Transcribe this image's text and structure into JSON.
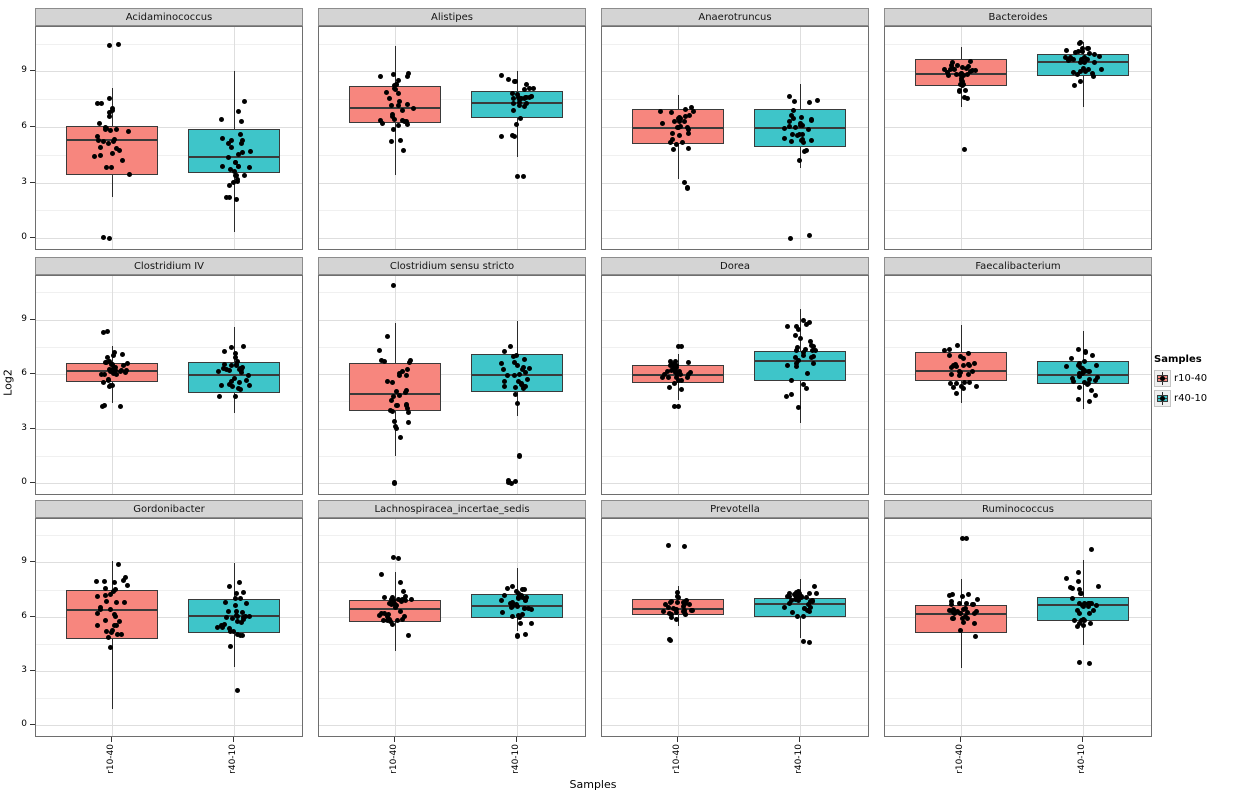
{
  "chart_data": {
    "type": "boxplot",
    "description": "Faceted box-and-jitter plot, 3 rows x 4 columns, one facet per bacterial genus, comparing two sample groups",
    "ylabel": "Log2",
    "xlabel": "Samples",
    "legend_title": "Samples",
    "x_categories": [
      "r10-40",
      "r40-10"
    ],
    "yticks": [
      0,
      3,
      6,
      9
    ],
    "ylim": [
      -0.7,
      11.4
    ],
    "grid": "major and minor horizontal gridlines, vertical gridline at each category",
    "legend_position": "right",
    "groups": [
      {
        "name": "r10-40",
        "fill": "#F7867E"
      },
      {
        "name": "r40-10",
        "fill": "#3EC5C9"
      }
    ],
    "style": {
      "panel_bg": "#FFFFFF",
      "panel_border": "#6E6E6E",
      "strip_bg": "#D4D4D4",
      "strip_border": "#8C8C8C",
      "grid_major": "#DEDEDE",
      "grid_minor": "#F0F0F0",
      "box_border": "#3A3A3A",
      "point_color": "#000000"
    },
    "panels": [
      {
        "title": "Acidaminococcus",
        "boxes": [
          {
            "group": "r10-40",
            "whisker_low": 2.2,
            "q1": 3.4,
            "median": 5.3,
            "q3": 6.05,
            "whisker_high": 8.1,
            "outliers": [
              10.4,
              10.45,
              0,
              0.05
            ],
            "n_points": 30
          },
          {
            "group": "r40-10",
            "whisker_low": 0.3,
            "q1": 3.5,
            "median": 4.4,
            "q3": 5.9,
            "whisker_high": 9.0,
            "outliers": [],
            "n_points": 33
          }
        ]
      },
      {
        "title": "Alistipes",
        "boxes": [
          {
            "group": "r10-40",
            "whisker_low": 3.4,
            "q1": 6.2,
            "median": 7.05,
            "q3": 8.2,
            "whisker_high": 10.4,
            "outliers": [],
            "n_points": 33
          },
          {
            "group": "r40-10",
            "whisker_low": 4.4,
            "q1": 6.5,
            "median": 7.3,
            "q3": 7.95,
            "whisker_high": 9.05,
            "outliers": [
              3.3,
              3.35
            ],
            "n_points": 31
          }
        ]
      },
      {
        "title": "Anaerotruncus",
        "boxes": [
          {
            "group": "r10-40",
            "whisker_low": 3.2,
            "q1": 5.1,
            "median": 5.95,
            "q3": 6.95,
            "whisker_high": 7.7,
            "outliers": [
              2.7,
              2.75,
              3.0
            ],
            "n_points": 30
          },
          {
            "group": "r40-10",
            "whisker_low": 3.8,
            "q1": 4.9,
            "median": 5.95,
            "q3": 6.95,
            "whisker_high": 8.3,
            "outliers": [
              0,
              0.15
            ],
            "n_points": 31
          }
        ]
      },
      {
        "title": "Bacteroides",
        "boxes": [
          {
            "group": "r10-40",
            "whisker_low": 7.1,
            "q1": 8.2,
            "median": 8.85,
            "q3": 9.65,
            "whisker_high": 10.3,
            "outliers": [
              4.8
            ],
            "n_points": 34
          },
          {
            "group": "r40-10",
            "whisker_low": 7.1,
            "q1": 8.75,
            "median": 9.5,
            "q3": 9.95,
            "whisker_high": 10.6,
            "outliers": [],
            "n_points": 34
          }
        ]
      },
      {
        "title": "Clostridium IV",
        "boxes": [
          {
            "group": "r10-40",
            "whisker_low": 4.4,
            "q1": 5.55,
            "median": 6.2,
            "q3": 6.6,
            "whisker_high": 7.55,
            "outliers": [
              4.2,
              4.25,
              4.3,
              8.3,
              8.35
            ],
            "n_points": 30
          },
          {
            "group": "r40-10",
            "whisker_low": 3.85,
            "q1": 4.95,
            "median": 5.95,
            "q3": 6.65,
            "whisker_high": 8.6,
            "outliers": [],
            "n_points": 32
          }
        ]
      },
      {
        "title": "Clostridium sensu stricto",
        "boxes": [
          {
            "group": "r10-40",
            "whisker_low": 1.5,
            "q1": 3.95,
            "median": 4.9,
            "q3": 6.6,
            "whisker_high": 8.8,
            "outliers": [
              10.9,
              0,
              0.05
            ],
            "n_points": 32
          },
          {
            "group": "r40-10",
            "whisker_low": 3.7,
            "q1": 5.0,
            "median": 5.95,
            "q3": 7.1,
            "whisker_high": 8.95,
            "outliers": [
              1.5,
              1.55,
              0,
              0.05,
              0.1,
              0.15
            ],
            "n_points": 28
          }
        ]
      },
      {
        "title": "Dorea",
        "boxes": [
          {
            "group": "r10-40",
            "whisker_low": 4.6,
            "q1": 5.5,
            "median": 5.95,
            "q3": 6.5,
            "whisker_high": 7.1,
            "outliers": [
              4.2,
              4.25,
              7.5,
              7.55
            ],
            "n_points": 30
          },
          {
            "group": "r40-10",
            "whisker_low": 3.3,
            "q1": 5.6,
            "median": 6.7,
            "q3": 7.3,
            "whisker_high": 9.6,
            "outliers": [],
            "n_points": 33
          }
        ]
      },
      {
        "title": "Faecalibacterium",
        "boxes": [
          {
            "group": "r10-40",
            "whisker_low": 4.4,
            "q1": 5.6,
            "median": 6.2,
            "q3": 7.2,
            "whisker_high": 8.7,
            "outliers": [],
            "n_points": 32
          },
          {
            "group": "r40-10",
            "whisker_low": 4.1,
            "q1": 5.45,
            "median": 5.95,
            "q3": 6.7,
            "whisker_high": 8.4,
            "outliers": [],
            "n_points": 33
          }
        ]
      },
      {
        "title": "Gordonibacter",
        "boxes": [
          {
            "group": "r10-40",
            "whisker_low": 0.9,
            "q1": 4.75,
            "median": 6.35,
            "q3": 7.45,
            "whisker_high": 9.1,
            "outliers": [],
            "n_points": 34
          },
          {
            "group": "r40-10",
            "whisker_low": 3.2,
            "q1": 5.1,
            "median": 6.05,
            "q3": 7.0,
            "whisker_high": 8.95,
            "outliers": [
              1.95
            ],
            "n_points": 33
          }
        ]
      },
      {
        "title": "Lachnospiracea_incertae_sedis",
        "boxes": [
          {
            "group": "r10-40",
            "whisker_low": 4.1,
            "q1": 5.7,
            "median": 6.4,
            "q3": 6.95,
            "whisker_high": 8.45,
            "outliers": [
              9.2,
              9.25
            ],
            "n_points": 34
          },
          {
            "group": "r40-10",
            "whisker_low": 5.2,
            "q1": 5.95,
            "median": 6.6,
            "q3": 7.25,
            "whisker_high": 8.7,
            "outliers": [
              4.9,
              4.95,
              5.0
            ],
            "n_points": 32
          }
        ]
      },
      {
        "title": "Prevotella",
        "boxes": [
          {
            "group": "r10-40",
            "whisker_low": 5.5,
            "q1": 6.1,
            "median": 6.45,
            "q3": 7.0,
            "whisker_high": 7.7,
            "outliers": [
              9.9,
              9.95,
              4.7,
              4.75
            ],
            "n_points": 30
          },
          {
            "group": "r40-10",
            "whisker_low": 4.85,
            "q1": 6.0,
            "median": 6.7,
            "q3": 7.05,
            "whisker_high": 8.1,
            "outliers": [
              4.6,
              4.65
            ],
            "n_points": 32
          }
        ]
      },
      {
        "title": "Ruminococcus",
        "boxes": [
          {
            "group": "r10-40",
            "whisker_low": 3.15,
            "q1": 5.1,
            "median": 6.15,
            "q3": 6.65,
            "whisker_high": 8.1,
            "outliers": [
              10.3,
              10.35
            ],
            "n_points": 32
          },
          {
            "group": "r40-10",
            "whisker_low": 4.45,
            "q1": 5.75,
            "median": 6.65,
            "q3": 7.1,
            "whisker_high": 9.15,
            "outliers": [
              3.4,
              3.45,
              9.7
            ],
            "n_points": 31
          }
        ]
      }
    ]
  }
}
